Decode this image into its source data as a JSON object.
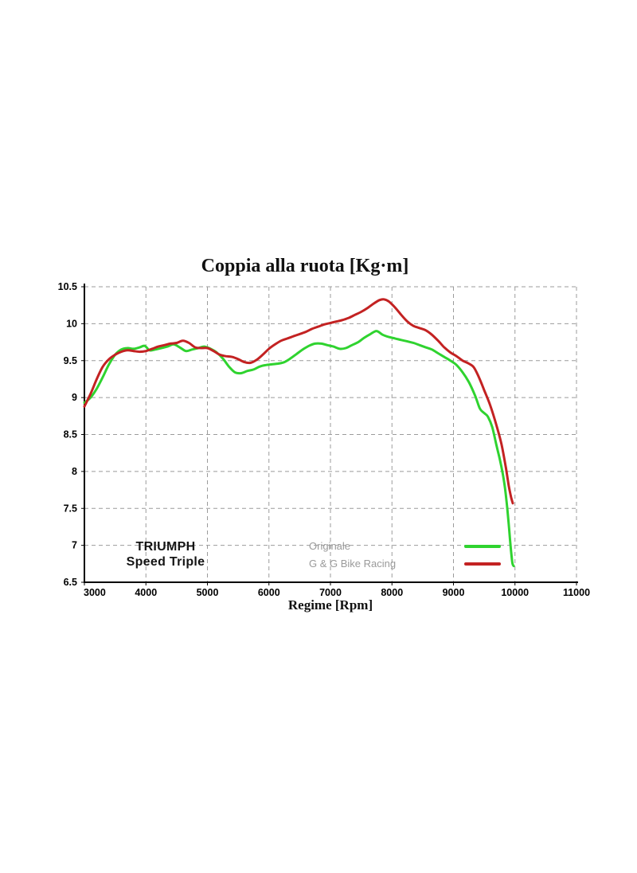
{
  "page": {
    "background": "#ffffff"
  },
  "chart_data": {
    "type": "line",
    "title": "Coppia alla ruota [Kg·m]",
    "xlabel": "Regime [Rpm]",
    "ylabel": "",
    "xlim": [
      3000,
      11000
    ],
    "ylim": [
      6.5,
      10.5
    ],
    "x_ticks": [
      3000,
      4000,
      5000,
      6000,
      7000,
      8000,
      9000,
      10000,
      11000
    ],
    "y_ticks": [
      6.5,
      7,
      7.5,
      8,
      8.5,
      9,
      9.5,
      10,
      10.5
    ],
    "grid": "dashed",
    "grid_color": "#9b9b9b",
    "axis_color": "#000000",
    "tick_label_color": "#000000",
    "legend_position": "inside-bottom-center",
    "legend_text_color": "#9a9a9a",
    "annotation": {
      "line1": "TRIUMPH",
      "line2": "Speed Triple"
    },
    "series": [
      {
        "name": "Originale",
        "color": "#2fd32f",
        "points": [
          [
            3000,
            8.93
          ],
          [
            3100,
            9.0
          ],
          [
            3200,
            9.12
          ],
          [
            3300,
            9.28
          ],
          [
            3400,
            9.45
          ],
          [
            3500,
            9.58
          ],
          [
            3600,
            9.65
          ],
          [
            3700,
            9.67
          ],
          [
            3800,
            9.66
          ],
          [
            3900,
            9.68
          ],
          [
            3980,
            9.7
          ],
          [
            4060,
            9.64
          ],
          [
            4150,
            9.65
          ],
          [
            4250,
            9.67
          ],
          [
            4350,
            9.69
          ],
          [
            4450,
            9.72
          ],
          [
            4550,
            9.68
          ],
          [
            4650,
            9.63
          ],
          [
            4750,
            9.65
          ],
          [
            4850,
            9.67
          ],
          [
            4950,
            9.69
          ],
          [
            5050,
            9.66
          ],
          [
            5150,
            9.61
          ],
          [
            5250,
            9.53
          ],
          [
            5350,
            9.42
          ],
          [
            5450,
            9.34
          ],
          [
            5550,
            9.33
          ],
          [
            5650,
            9.36
          ],
          [
            5750,
            9.38
          ],
          [
            5850,
            9.42
          ],
          [
            5950,
            9.44
          ],
          [
            6050,
            9.45
          ],
          [
            6150,
            9.46
          ],
          [
            6250,
            9.48
          ],
          [
            6350,
            9.53
          ],
          [
            6450,
            9.59
          ],
          [
            6550,
            9.65
          ],
          [
            6650,
            9.7
          ],
          [
            6750,
            9.73
          ],
          [
            6850,
            9.73
          ],
          [
            6950,
            9.71
          ],
          [
            7050,
            9.69
          ],
          [
            7150,
            9.66
          ],
          [
            7250,
            9.67
          ],
          [
            7350,
            9.71
          ],
          [
            7450,
            9.75
          ],
          [
            7550,
            9.81
          ],
          [
            7650,
            9.86
          ],
          [
            7750,
            9.9
          ],
          [
            7850,
            9.85
          ],
          [
            7950,
            9.82
          ],
          [
            8050,
            9.8
          ],
          [
            8150,
            9.78
          ],
          [
            8250,
            9.76
          ],
          [
            8350,
            9.74
          ],
          [
            8450,
            9.71
          ],
          [
            8550,
            9.68
          ],
          [
            8650,
            9.65
          ],
          [
            8750,
            9.6
          ],
          [
            8850,
            9.55
          ],
          [
            8950,
            9.5
          ],
          [
            9050,
            9.44
          ],
          [
            9150,
            9.34
          ],
          [
            9250,
            9.21
          ],
          [
            9350,
            9.03
          ],
          [
            9430,
            8.85
          ],
          [
            9500,
            8.79
          ],
          [
            9560,
            8.74
          ],
          [
            9630,
            8.6
          ],
          [
            9700,
            8.35
          ],
          [
            9760,
            8.14
          ],
          [
            9820,
            7.88
          ],
          [
            9860,
            7.62
          ],
          [
            9895,
            7.32
          ],
          [
            9925,
            7.02
          ],
          [
            9945,
            6.85
          ],
          [
            9960,
            6.75
          ],
          [
            9980,
            6.72
          ]
        ]
      },
      {
        "name": "G & G Bike Racing",
        "color": "#c32222",
        "points": [
          [
            3000,
            8.88
          ],
          [
            3100,
            9.05
          ],
          [
            3200,
            9.25
          ],
          [
            3300,
            9.42
          ],
          [
            3400,
            9.52
          ],
          [
            3500,
            9.58
          ],
          [
            3600,
            9.62
          ],
          [
            3700,
            9.64
          ],
          [
            3800,
            9.63
          ],
          [
            3900,
            9.62
          ],
          [
            4000,
            9.63
          ],
          [
            4100,
            9.66
          ],
          [
            4200,
            9.69
          ],
          [
            4300,
            9.71
          ],
          [
            4400,
            9.73
          ],
          [
            4500,
            9.74
          ],
          [
            4600,
            9.77
          ],
          [
            4700,
            9.74
          ],
          [
            4800,
            9.68
          ],
          [
            4900,
            9.67
          ],
          [
            5000,
            9.67
          ],
          [
            5100,
            9.63
          ],
          [
            5200,
            9.58
          ],
          [
            5300,
            9.56
          ],
          [
            5400,
            9.55
          ],
          [
            5500,
            9.52
          ],
          [
            5600,
            9.48
          ],
          [
            5700,
            9.47
          ],
          [
            5800,
            9.51
          ],
          [
            5900,
            9.58
          ],
          [
            6000,
            9.66
          ],
          [
            6100,
            9.72
          ],
          [
            6200,
            9.77
          ],
          [
            6300,
            9.8
          ],
          [
            6400,
            9.83
          ],
          [
            6500,
            9.86
          ],
          [
            6600,
            9.89
          ],
          [
            6700,
            9.93
          ],
          [
            6800,
            9.96
          ],
          [
            6900,
            9.99
          ],
          [
            7000,
            10.01
          ],
          [
            7100,
            10.03
          ],
          [
            7200,
            10.05
          ],
          [
            7300,
            10.08
          ],
          [
            7400,
            10.12
          ],
          [
            7500,
            10.16
          ],
          [
            7600,
            10.21
          ],
          [
            7700,
            10.27
          ],
          [
            7800,
            10.32
          ],
          [
            7870,
            10.33
          ],
          [
            7950,
            10.3
          ],
          [
            8050,
            10.22
          ],
          [
            8150,
            10.12
          ],
          [
            8250,
            10.03
          ],
          [
            8350,
            9.97
          ],
          [
            8450,
            9.94
          ],
          [
            8550,
            9.91
          ],
          [
            8650,
            9.85
          ],
          [
            8750,
            9.77
          ],
          [
            8850,
            9.68
          ],
          [
            8950,
            9.61
          ],
          [
            9050,
            9.56
          ],
          [
            9150,
            9.5
          ],
          [
            9250,
            9.46
          ],
          [
            9330,
            9.41
          ],
          [
            9400,
            9.3
          ],
          [
            9500,
            9.1
          ],
          [
            9600,
            8.89
          ],
          [
            9700,
            8.62
          ],
          [
            9780,
            8.37
          ],
          [
            9850,
            8.06
          ],
          [
            9900,
            7.8
          ],
          [
            9940,
            7.64
          ],
          [
            9965,
            7.57
          ]
        ]
      }
    ]
  }
}
